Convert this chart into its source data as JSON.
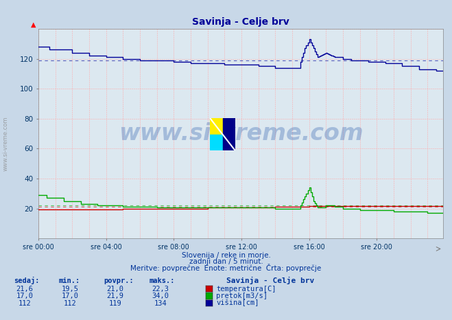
{
  "title": "Savinja - Celje brv",
  "bg_color": "#c8d8e8",
  "plot_bg_color": "#dce8f0",
  "ylim": [
    0,
    140
  ],
  "xlim": [
    0,
    287
  ],
  "x_tick_positions": [
    0,
    48,
    96,
    144,
    192,
    240
  ],
  "x_tick_labels": [
    "sre 00:00",
    "sre 04:00",
    "sre 08:00",
    "sre 12:00",
    "sre 16:00",
    "sre 20:00"
  ],
  "y_tick_positions": [
    20,
    40,
    60,
    80,
    100,
    120
  ],
  "y_tick_labels": [
    "20",
    "40",
    "60",
    "80",
    "100",
    "120"
  ],
  "temp_color": "#cc0000",
  "flow_color": "#00aa00",
  "height_color": "#000099",
  "avg_temp": 21.0,
  "avg_flow": 21.9,
  "avg_height": 119,
  "subtitle1": "Slovenija / reke in morje.",
  "subtitle2": "zadnji dan / 5 minut.",
  "subtitle3": "Meritve: povprečne  Enote: metrične  Črta: povprečje",
  "table_title": "Savinja - Celje brv",
  "table_headers": [
    "sedaj:",
    "min.:",
    "povpr.:",
    "maks.:"
  ],
  "temp_row": [
    "21,6",
    "19,5",
    "21,0",
    "22,3",
    "temperatura[C]"
  ],
  "flow_row": [
    "17,0",
    "17,0",
    "21,9",
    "34,0",
    "pretok[m3/s]"
  ],
  "height_row": [
    "112",
    "112",
    "119",
    "134",
    "višina[cm]"
  ],
  "watermark": "www.si-vreme.com"
}
